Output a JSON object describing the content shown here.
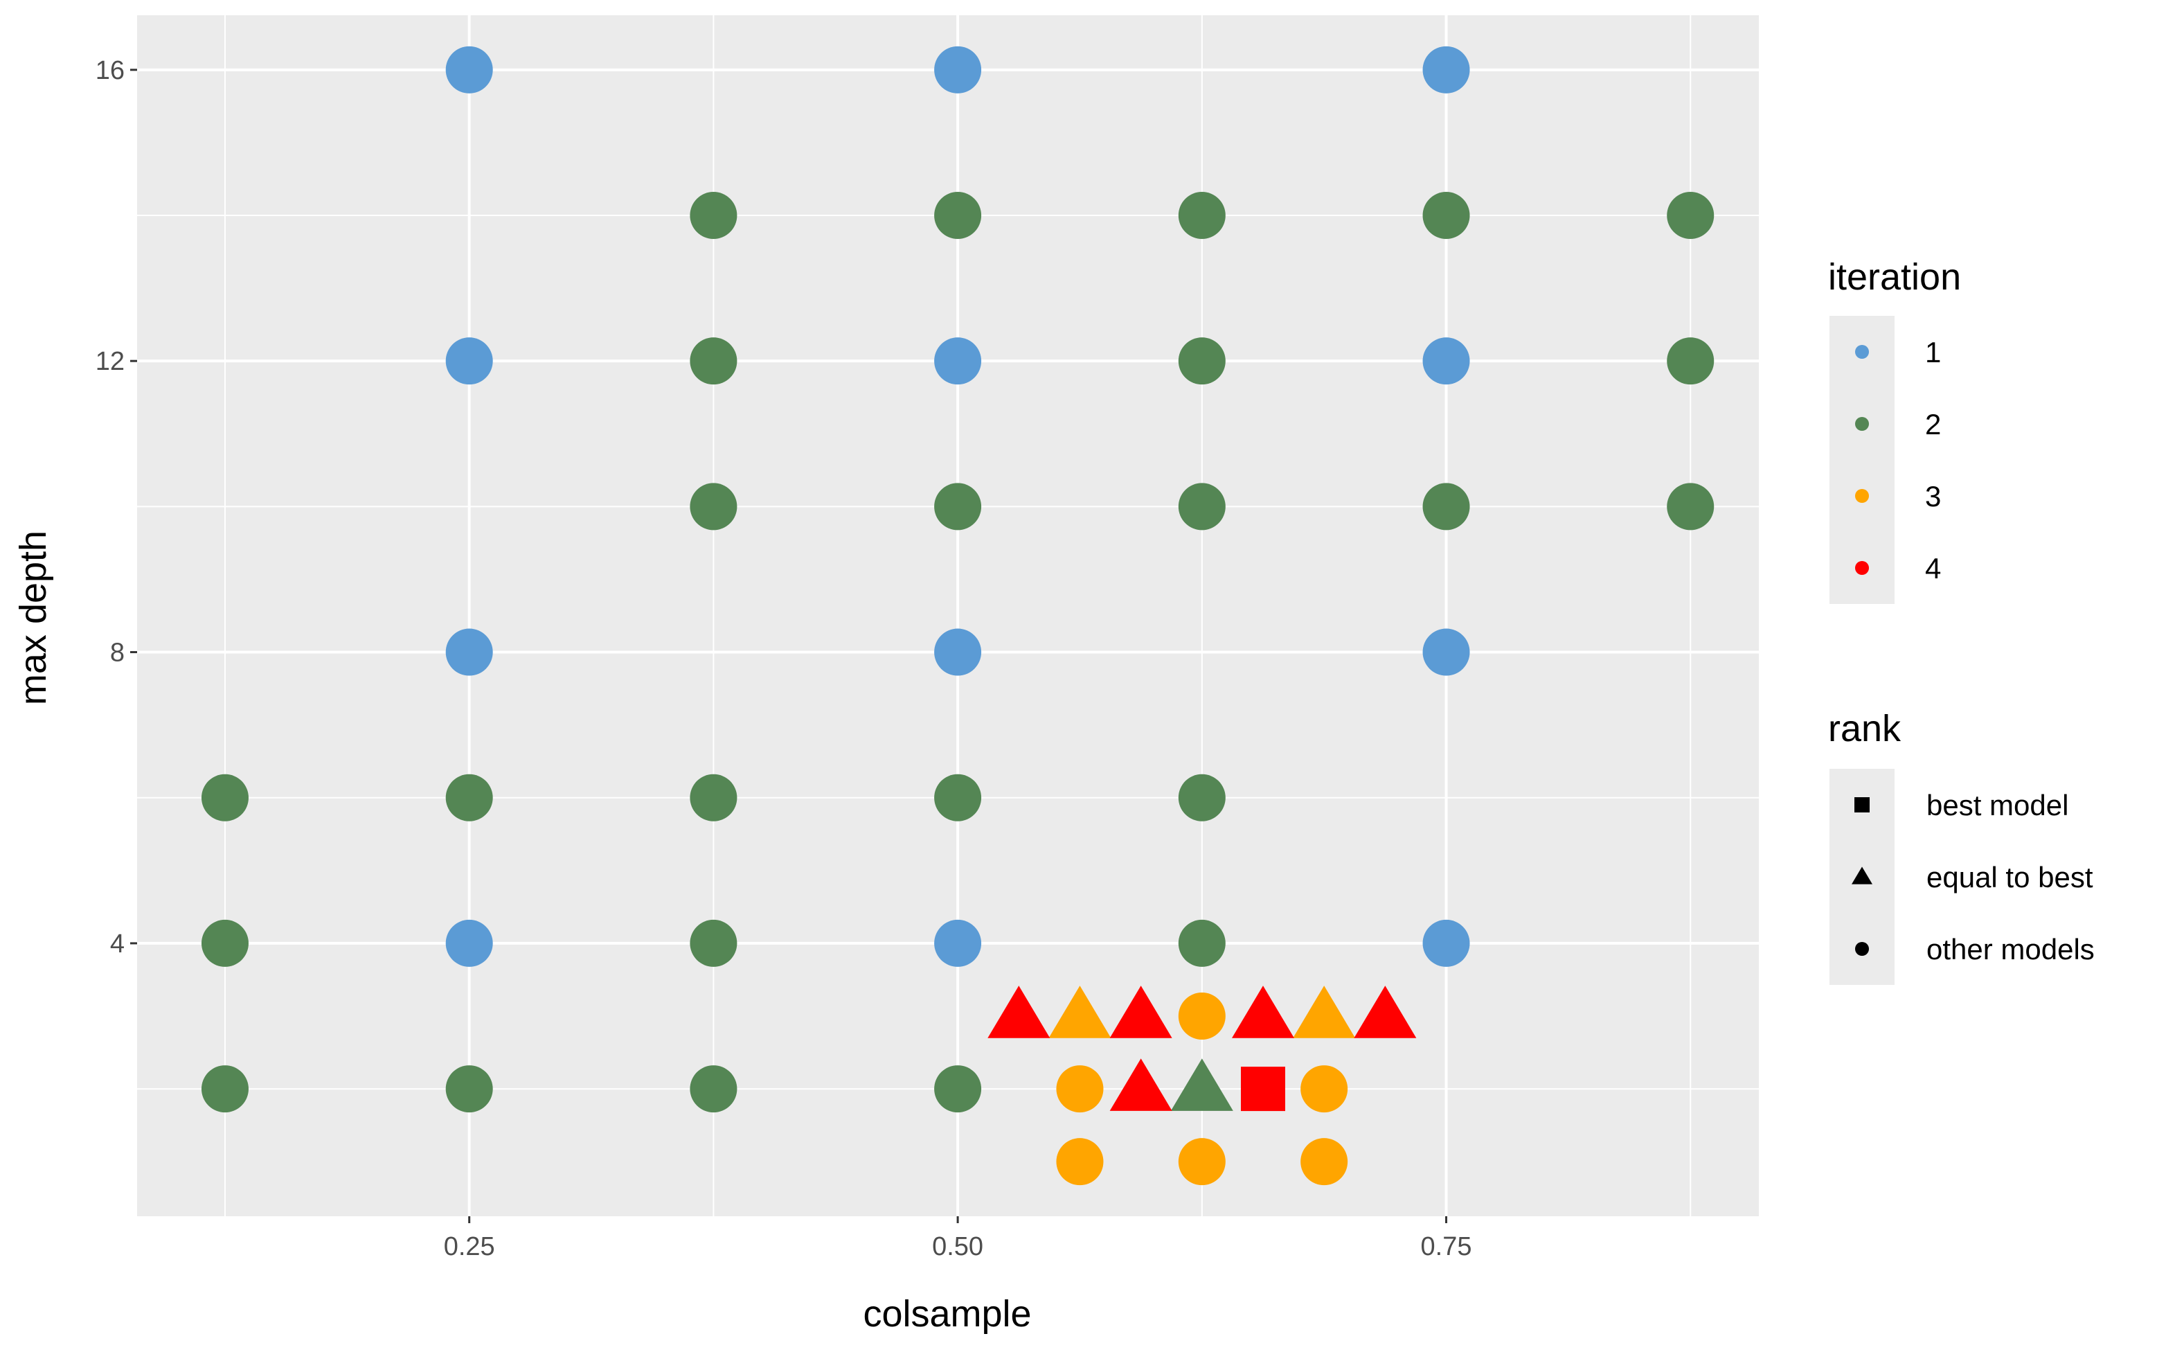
{
  "chart_data": {
    "type": "scatter",
    "xlabel": "colsample",
    "ylabel": "max depth",
    "xlim": [
      0.08,
      0.91
    ],
    "ylim": [
      0.25,
      16.75
    ],
    "x_ticks": [
      0.25,
      0.5,
      0.75
    ],
    "x_tick_labels": [
      "0.25",
      "0.50",
      "0.75"
    ],
    "x_minor_ticks": [
      0.125,
      0.375,
      0.625,
      0.875
    ],
    "y_ticks": [
      4,
      8,
      12,
      16
    ],
    "y_tick_labels": [
      "4",
      "8",
      "12",
      "16"
    ],
    "y_minor_ticks": [
      2,
      6,
      10,
      14
    ],
    "grid": true,
    "panel_background": "#ebebeb",
    "colors": {
      "1": "#5b9bd5",
      "2": "#548654",
      "3": "#ffa500",
      "4": "#ff0000"
    },
    "legend_placement": "right",
    "legends": [
      {
        "title": "iteration",
        "entries": [
          {
            "label": "1",
            "color": "#5b9bd5",
            "shape": "circle"
          },
          {
            "label": "2",
            "color": "#548654",
            "shape": "circle"
          },
          {
            "label": "3",
            "color": "#ffa500",
            "shape": "circle"
          },
          {
            "label": "4",
            "color": "#ff0000",
            "shape": "circle"
          }
        ]
      },
      {
        "title": "rank",
        "entries": [
          {
            "label": "best model",
            "color": "#000000",
            "shape": "square"
          },
          {
            "label": "equal to best",
            "color": "#000000",
            "shape": "triangle"
          },
          {
            "label": "other models",
            "color": "#000000",
            "shape": "circle"
          }
        ]
      }
    ],
    "points": [
      {
        "x": 0.25,
        "y": 16,
        "iteration": "1",
        "rank": "other models"
      },
      {
        "x": 0.5,
        "y": 16,
        "iteration": "1",
        "rank": "other models"
      },
      {
        "x": 0.75,
        "y": 16,
        "iteration": "1",
        "rank": "other models"
      },
      {
        "x": 0.25,
        "y": 12,
        "iteration": "1",
        "rank": "other models"
      },
      {
        "x": 0.5,
        "y": 12,
        "iteration": "1",
        "rank": "other models"
      },
      {
        "x": 0.75,
        "y": 12,
        "iteration": "1",
        "rank": "other models"
      },
      {
        "x": 0.25,
        "y": 8,
        "iteration": "1",
        "rank": "other models"
      },
      {
        "x": 0.5,
        "y": 8,
        "iteration": "1",
        "rank": "other models"
      },
      {
        "x": 0.75,
        "y": 8,
        "iteration": "1",
        "rank": "other models"
      },
      {
        "x": 0.25,
        "y": 4,
        "iteration": "1",
        "rank": "other models"
      },
      {
        "x": 0.5,
        "y": 4,
        "iteration": "1",
        "rank": "other models"
      },
      {
        "x": 0.75,
        "y": 4,
        "iteration": "1",
        "rank": "other models"
      },
      {
        "x": 0.375,
        "y": 14,
        "iteration": "2",
        "rank": "other models"
      },
      {
        "x": 0.5,
        "y": 14,
        "iteration": "2",
        "rank": "other models"
      },
      {
        "x": 0.625,
        "y": 14,
        "iteration": "2",
        "rank": "other models"
      },
      {
        "x": 0.75,
        "y": 14,
        "iteration": "2",
        "rank": "other models"
      },
      {
        "x": 0.875,
        "y": 14,
        "iteration": "2",
        "rank": "other models"
      },
      {
        "x": 0.375,
        "y": 12,
        "iteration": "2",
        "rank": "other models"
      },
      {
        "x": 0.625,
        "y": 12,
        "iteration": "2",
        "rank": "other models"
      },
      {
        "x": 0.875,
        "y": 12,
        "iteration": "2",
        "rank": "other models"
      },
      {
        "x": 0.375,
        "y": 10,
        "iteration": "2",
        "rank": "other models"
      },
      {
        "x": 0.5,
        "y": 10,
        "iteration": "2",
        "rank": "other models"
      },
      {
        "x": 0.625,
        "y": 10,
        "iteration": "2",
        "rank": "other models"
      },
      {
        "x": 0.75,
        "y": 10,
        "iteration": "2",
        "rank": "other models"
      },
      {
        "x": 0.875,
        "y": 10,
        "iteration": "2",
        "rank": "other models"
      },
      {
        "x": 0.125,
        "y": 6,
        "iteration": "2",
        "rank": "other models"
      },
      {
        "x": 0.25,
        "y": 6,
        "iteration": "2",
        "rank": "other models"
      },
      {
        "x": 0.375,
        "y": 6,
        "iteration": "2",
        "rank": "other models"
      },
      {
        "x": 0.5,
        "y": 6,
        "iteration": "2",
        "rank": "other models"
      },
      {
        "x": 0.625,
        "y": 6,
        "iteration": "2",
        "rank": "other models"
      },
      {
        "x": 0.125,
        "y": 4,
        "iteration": "2",
        "rank": "other models"
      },
      {
        "x": 0.375,
        "y": 4,
        "iteration": "2",
        "rank": "other models"
      },
      {
        "x": 0.625,
        "y": 4,
        "iteration": "2",
        "rank": "other models"
      },
      {
        "x": 0.125,
        "y": 2,
        "iteration": "2",
        "rank": "other models"
      },
      {
        "x": 0.25,
        "y": 2,
        "iteration": "2",
        "rank": "other models"
      },
      {
        "x": 0.375,
        "y": 2,
        "iteration": "2",
        "rank": "other models"
      },
      {
        "x": 0.5,
        "y": 2,
        "iteration": "2",
        "rank": "other models"
      },
      {
        "x": 0.625,
        "y": 2,
        "iteration": "2",
        "rank": "equal to best"
      },
      {
        "x": 0.5625,
        "y": 3,
        "iteration": "3",
        "rank": "equal to best"
      },
      {
        "x": 0.625,
        "y": 3,
        "iteration": "3",
        "rank": "other models"
      },
      {
        "x": 0.6875,
        "y": 3,
        "iteration": "3",
        "rank": "equal to best"
      },
      {
        "x": 0.5625,
        "y": 2,
        "iteration": "3",
        "rank": "other models"
      },
      {
        "x": 0.6875,
        "y": 2,
        "iteration": "3",
        "rank": "other models"
      },
      {
        "x": 0.5625,
        "y": 1,
        "iteration": "3",
        "rank": "other models"
      },
      {
        "x": 0.625,
        "y": 1,
        "iteration": "3",
        "rank": "other models"
      },
      {
        "x": 0.6875,
        "y": 1,
        "iteration": "3",
        "rank": "other models"
      },
      {
        "x": 0.53125,
        "y": 3,
        "iteration": "4",
        "rank": "equal to best"
      },
      {
        "x": 0.59375,
        "y": 3,
        "iteration": "4",
        "rank": "equal to best"
      },
      {
        "x": 0.65625,
        "y": 3,
        "iteration": "4",
        "rank": "equal to best"
      },
      {
        "x": 0.71875,
        "y": 3,
        "iteration": "4",
        "rank": "equal to best"
      },
      {
        "x": 0.59375,
        "y": 2,
        "iteration": "4",
        "rank": "equal to best"
      },
      {
        "x": 0.65625,
        "y": 2,
        "iteration": "4",
        "rank": "best model"
      }
    ]
  }
}
